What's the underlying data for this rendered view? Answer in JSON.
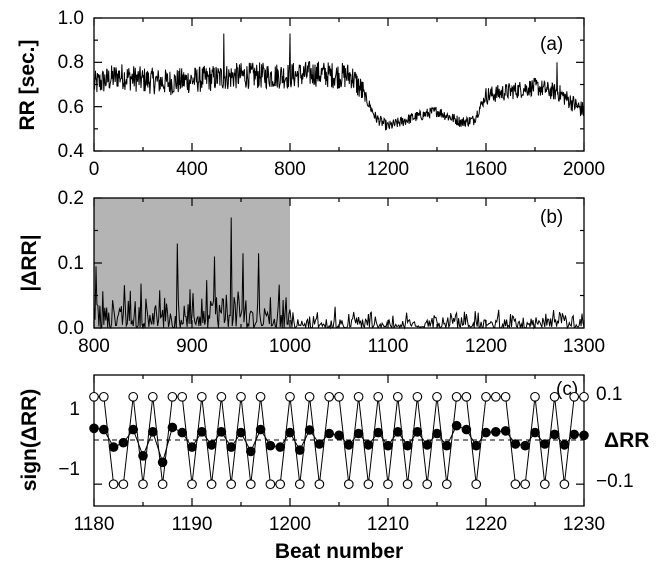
{
  "chart_data": [
    {
      "type": "line",
      "panel_label": "(a)",
      "ylabel": "RR [sec.]",
      "xlim": [
        0,
        2000
      ],
      "ylim": [
        0.4,
        1.0
      ],
      "xticks": [
        "0",
        "400",
        "800",
        "1200",
        "1600",
        "2000"
      ],
      "yticks": [
        "0.4",
        "0.6",
        "0.8",
        "1.0"
      ],
      "series": [
        {
          "x": [
            0,
            100,
            200,
            300,
            400,
            500,
            600,
            700,
            800,
            900,
            1000,
            1050,
            1100,
            1150,
            1200,
            1300,
            1400,
            1500,
            1550,
            1600,
            1700,
            1800,
            1900,
            2000
          ],
          "values": [
            0.7,
            0.74,
            0.72,
            0.71,
            0.72,
            0.73,
            0.74,
            0.74,
            0.74,
            0.75,
            0.74,
            0.74,
            0.66,
            0.55,
            0.51,
            0.55,
            0.58,
            0.53,
            0.54,
            0.65,
            0.67,
            0.69,
            0.66,
            0.58
          ]
        }
      ]
    },
    {
      "type": "line",
      "panel_label": "(b)",
      "ylabel": "|ΔRR|",
      "xlim": [
        800,
        1300
      ],
      "ylim": [
        0.0,
        0.2
      ],
      "xticks": [
        "800",
        "900",
        "1000",
        "1100",
        "1200",
        "1300"
      ],
      "yticks": [
        "0.0",
        "0.1",
        "0.2"
      ],
      "shaded_region": [
        800,
        1000
      ],
      "peaks": [
        {
          "x": 940,
          "y": 0.17
        },
        {
          "x": 885,
          "y": 0.13
        },
        {
          "x": 952,
          "y": 0.115
        },
        {
          "x": 923,
          "y": 0.11
        },
        {
          "x": 968,
          "y": 0.115
        },
        {
          "x": 802,
          "y": 0.095
        }
      ]
    },
    {
      "type": "scatter",
      "panel_label": "(c)",
      "xlabel": "Beat number",
      "ylabel": "sign(ΔRR)",
      "ylabel_right": "ΔRR",
      "xlim": [
        1180,
        1230
      ],
      "ylim": [
        -1.5,
        1.5
      ],
      "ylim_right": [
        -0.15,
        0.15
      ],
      "xticks": [
        "1180",
        "1190",
        "1200",
        "1210",
        "1220",
        "1230"
      ],
      "yticks": [
        "1",
        "−1"
      ],
      "yticks_right": [
        "0.1",
        "−0.1"
      ],
      "series": [
        {
          "marker": "open-circle",
          "x": [
            1180,
            1181,
            1182,
            1183,
            1184,
            1185,
            1186,
            1187,
            1188,
            1189,
            1190,
            1191,
            1192,
            1193,
            1194,
            1195,
            1196,
            1197,
            1198,
            1199,
            1200,
            1201,
            1202,
            1203,
            1204,
            1205,
            1206,
            1207,
            1208,
            1209,
            1210,
            1211,
            1212,
            1213,
            1214,
            1215,
            1216,
            1217,
            1218,
            1219,
            1220,
            1221,
            1222,
            1223,
            1224,
            1225,
            1226,
            1227,
            1228,
            1229,
            1230
          ],
          "values": [
            1,
            1,
            -1,
            -1,
            1,
            -1,
            1,
            -1,
            1,
            1,
            -1,
            1,
            -1,
            1,
            -1,
            1,
            -1,
            1,
            -1,
            -1,
            1,
            -1,
            1,
            -1,
            1,
            1,
            -1,
            1,
            -1,
            1,
            -1,
            1,
            -1,
            1,
            -1,
            1,
            -1,
            1,
            1,
            -1,
            1,
            1,
            1,
            -1,
            -1,
            1,
            -1,
            1,
            -1,
            1,
            1
          ]
        },
        {
          "marker": "filled-circle",
          "x": [
            1180,
            1181,
            1182,
            1183,
            1184,
            1185,
            1186,
            1187,
            1188,
            1189,
            1190,
            1191,
            1192,
            1193,
            1194,
            1195,
            1196,
            1197,
            1198,
            1199,
            1200,
            1201,
            1202,
            1203,
            1204,
            1205,
            1206,
            1207,
            1208,
            1209,
            1210,
            1211,
            1212,
            1213,
            1214,
            1215,
            1216,
            1217,
            1218,
            1219,
            1220,
            1221,
            1222,
            1223,
            1224,
            1225,
            1226,
            1227,
            1228,
            1229,
            1230
          ],
          "values": [
            0.028,
            0.025,
            -0.015,
            -0.005,
            0.025,
            -0.035,
            0.02,
            -0.05,
            0.03,
            0.018,
            -0.015,
            0.02,
            -0.01,
            0.02,
            -0.015,
            0.018,
            -0.025,
            0.025,
            -0.012,
            -0.015,
            0.018,
            -0.022,
            0.024,
            -0.008,
            0.016,
            0.012,
            -0.01,
            0.016,
            -0.01,
            0.018,
            -0.012,
            0.02,
            -0.012,
            0.02,
            -0.01,
            0.016,
            -0.012,
            0.034,
            0.025,
            -0.012,
            0.018,
            0.02,
            0.022,
            -0.008,
            -0.012,
            0.018,
            -0.008,
            0.014,
            -0.01,
            0.014,
            0.012
          ]
        }
      ]
    }
  ]
}
